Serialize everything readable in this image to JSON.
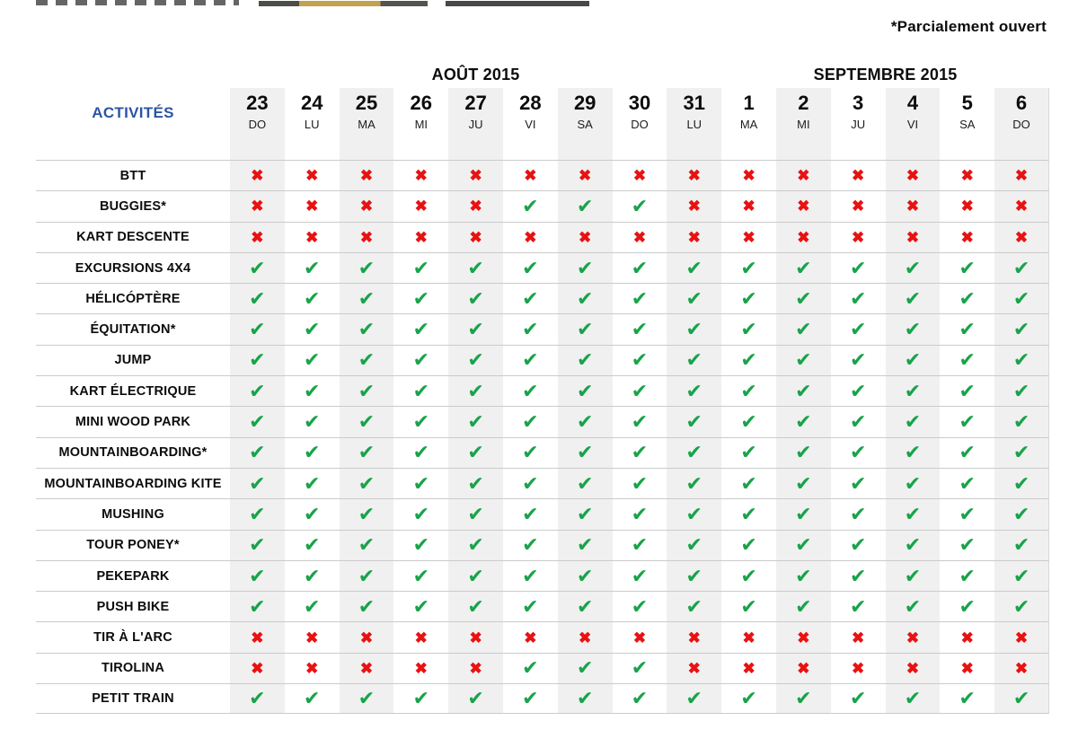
{
  "note": {
    "text": "*Parcialement ouvert"
  },
  "symbols": {
    "open": "✔",
    "closed": "✖"
  },
  "colors": {
    "open_green": "#18A34A",
    "closed_red": "#E81212",
    "header_blue": "#2B54A4",
    "column_stripe": "#F0F0F0",
    "row_line": "#CBCBCB"
  },
  "table": {
    "activities_header": "ACTIVITÉS",
    "month_groups": [
      {
        "label": "AOÛT 2015",
        "columns": 9
      },
      {
        "label": "SEPTEMBRE 2015",
        "columns": 6
      }
    ],
    "columns": [
      {
        "day": "23",
        "weekday": "DO"
      },
      {
        "day": "24",
        "weekday": "LU"
      },
      {
        "day": "25",
        "weekday": "MA"
      },
      {
        "day": "26",
        "weekday": "MI"
      },
      {
        "day": "27",
        "weekday": "JU"
      },
      {
        "day": "28",
        "weekday": "VI"
      },
      {
        "day": "29",
        "weekday": "SA"
      },
      {
        "day": "30",
        "weekday": "DO"
      },
      {
        "day": "31",
        "weekday": "LU"
      },
      {
        "day": "1",
        "weekday": "MA"
      },
      {
        "day": "2",
        "weekday": "MI"
      },
      {
        "day": "3",
        "weekday": "JU"
      },
      {
        "day": "4",
        "weekday": "VI"
      },
      {
        "day": "5",
        "weekday": "SA"
      },
      {
        "day": "6",
        "weekday": "DO"
      }
    ],
    "rows": [
      {
        "activity": "BTT",
        "days": [
          "closed",
          "closed",
          "closed",
          "closed",
          "closed",
          "closed",
          "closed",
          "closed",
          "closed",
          "closed",
          "closed",
          "closed",
          "closed",
          "closed",
          "closed"
        ]
      },
      {
        "activity": "BUGGIES*",
        "days": [
          "closed",
          "closed",
          "closed",
          "closed",
          "closed",
          "open",
          "open",
          "open",
          "closed",
          "closed",
          "closed",
          "closed",
          "closed",
          "closed",
          "closed"
        ]
      },
      {
        "activity": "KART DESCENTE",
        "days": [
          "closed",
          "closed",
          "closed",
          "closed",
          "closed",
          "closed",
          "closed",
          "closed",
          "closed",
          "closed",
          "closed",
          "closed",
          "closed",
          "closed",
          "closed"
        ]
      },
      {
        "activity": "EXCURSIONS 4X4",
        "days": [
          "open",
          "open",
          "open",
          "open",
          "open",
          "open",
          "open",
          "open",
          "open",
          "open",
          "open",
          "open",
          "open",
          "open",
          "open"
        ]
      },
      {
        "activity": "HÉLICÓPTÈRE",
        "days": [
          "open",
          "open",
          "open",
          "open",
          "open",
          "open",
          "open",
          "open",
          "open",
          "open",
          "open",
          "open",
          "open",
          "open",
          "open"
        ]
      },
      {
        "activity": "ÉQUITATION*",
        "days": [
          "open",
          "open",
          "open",
          "open",
          "open",
          "open",
          "open",
          "open",
          "open",
          "open",
          "open",
          "open",
          "open",
          "open",
          "open"
        ]
      },
      {
        "activity": "JUMP",
        "days": [
          "open",
          "open",
          "open",
          "open",
          "open",
          "open",
          "open",
          "open",
          "open",
          "open",
          "open",
          "open",
          "open",
          "open",
          "open"
        ]
      },
      {
        "activity": "KART ÉLECTRIQUE",
        "days": [
          "open",
          "open",
          "open",
          "open",
          "open",
          "open",
          "open",
          "open",
          "open",
          "open",
          "open",
          "open",
          "open",
          "open",
          "open"
        ]
      },
      {
        "activity": "MINI WOOD PARK",
        "days": [
          "open",
          "open",
          "open",
          "open",
          "open",
          "open",
          "open",
          "open",
          "open",
          "open",
          "open",
          "open",
          "open",
          "open",
          "open"
        ]
      },
      {
        "activity": "MOUNTAINBOARDING*",
        "days": [
          "open",
          "open",
          "open",
          "open",
          "open",
          "open",
          "open",
          "open",
          "open",
          "open",
          "open",
          "open",
          "open",
          "open",
          "open"
        ]
      },
      {
        "activity": "MOUNTAINBOARDING KITE",
        "days": [
          "open",
          "open",
          "open",
          "open",
          "open",
          "open",
          "open",
          "open",
          "open",
          "open",
          "open",
          "open",
          "open",
          "open",
          "open"
        ]
      },
      {
        "activity": "MUSHING",
        "days": [
          "open",
          "open",
          "open",
          "open",
          "open",
          "open",
          "open",
          "open",
          "open",
          "open",
          "open",
          "open",
          "open",
          "open",
          "open"
        ]
      },
      {
        "activity": "TOUR PONEY*",
        "days": [
          "open",
          "open",
          "open",
          "open",
          "open",
          "open",
          "open",
          "open",
          "open",
          "open",
          "open",
          "open",
          "open",
          "open",
          "open"
        ]
      },
      {
        "activity": "PEKEPARK",
        "days": [
          "open",
          "open",
          "open",
          "open",
          "open",
          "open",
          "open",
          "open",
          "open",
          "open",
          "open",
          "open",
          "open",
          "open",
          "open"
        ]
      },
      {
        "activity": "PUSH BIKE",
        "days": [
          "open",
          "open",
          "open",
          "open",
          "open",
          "open",
          "open",
          "open",
          "open",
          "open",
          "open",
          "open",
          "open",
          "open",
          "open"
        ]
      },
      {
        "activity": "TIR À L'ARC",
        "days": [
          "closed",
          "closed",
          "closed",
          "closed",
          "closed",
          "closed",
          "closed",
          "closed",
          "closed",
          "closed",
          "closed",
          "closed",
          "closed",
          "closed",
          "closed"
        ]
      },
      {
        "activity": "TIROLINA",
        "days": [
          "closed",
          "closed",
          "closed",
          "closed",
          "closed",
          "open",
          "open",
          "open",
          "closed",
          "closed",
          "closed",
          "closed",
          "closed",
          "closed",
          "closed"
        ]
      },
      {
        "activity": "PETIT TRAIN",
        "days": [
          "open",
          "open",
          "open",
          "open",
          "open",
          "open",
          "open",
          "open",
          "open",
          "open",
          "open",
          "open",
          "open",
          "open",
          "open"
        ]
      }
    ]
  }
}
